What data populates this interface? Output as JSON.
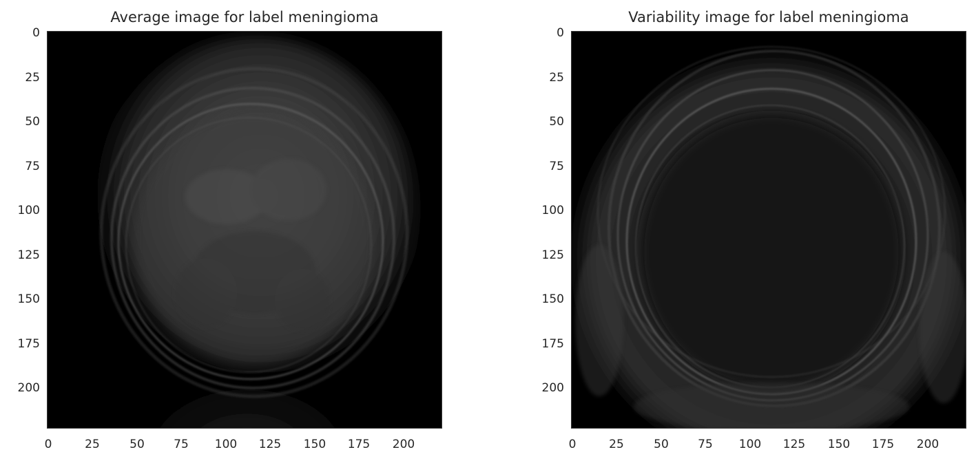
{
  "panels": [
    {
      "title": "Average image for label meningioma",
      "label": "meningioma",
      "kind": "average"
    },
    {
      "title": "Variability image for label meningioma",
      "label": "meningioma",
      "kind": "variability"
    }
  ],
  "axes": {
    "x_ticks": [
      "0",
      "25",
      "50",
      "75",
      "100",
      "125",
      "150",
      "175",
      "200"
    ],
    "y_ticks": [
      "0",
      "25",
      "50",
      "75",
      "100",
      "125",
      "150",
      "175",
      "200"
    ],
    "x_range": [
      0,
      223
    ],
    "y_range": [
      0,
      223
    ]
  },
  "colormap": "gray",
  "colors": {
    "background": "#000000",
    "text": "#262626",
    "frame": "#3a3a3a"
  }
}
